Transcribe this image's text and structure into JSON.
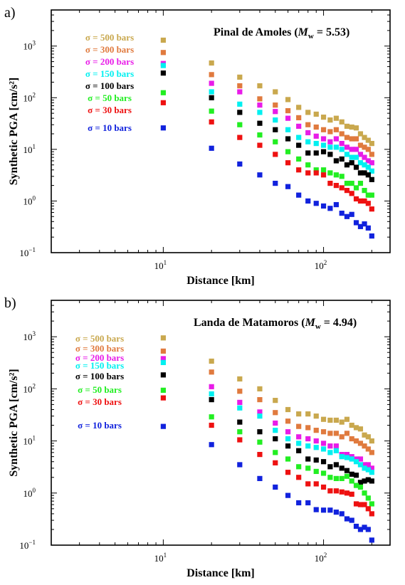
{
  "chart_data": [
    {
      "type": "scatter",
      "panel": "a)",
      "title": "Pinal de Amoles",
      "title_mw_symbol": "M",
      "title_mw_sub": "w",
      "title_mw_value": " = 5.53)",
      "xlabel": "Distance [km]",
      "ylabel": "Synthetic PGA [cm/s²]",
      "xscale": "log",
      "yscale": "log",
      "xlim": [
        2,
        260
      ],
      "ylim": [
        0.1,
        5000
      ],
      "x_tick_labels": [
        {
          "base": "10",
          "exp": "1"
        },
        {
          "base": "10",
          "exp": "2"
        }
      ],
      "y_tick_labels": [
        {
          "base": "10",
          "exp": "−1"
        },
        {
          "base": "10",
          "exp": "0"
        },
        {
          "base": "10",
          "exp": "1"
        },
        {
          "base": "10",
          "exp": "2"
        },
        {
          "base": "10",
          "exp": "3"
        }
      ],
      "legend_position": "top-left",
      "series": [
        {
          "name": "σ = 500 bars",
          "color": "#c9a84e",
          "x": [
            10,
            20,
            30,
            40,
            50,
            60,
            70,
            80,
            90,
            100,
            110,
            120,
            130,
            140,
            150,
            160,
            170,
            180,
            190,
            200
          ],
          "y": [
            1300,
            470,
            250,
            170,
            130,
            92,
            65,
            52,
            48,
            42,
            37,
            40,
            34,
            28,
            27,
            26,
            20,
            17,
            15,
            13
          ]
        },
        {
          "name": "σ = 300 bars",
          "color": "#e07a3e",
          "x": [
            10,
            20,
            30,
            40,
            50,
            60,
            70,
            80,
            90,
            100,
            110,
            120,
            130,
            140,
            150,
            160,
            170,
            180,
            190,
            200
          ],
          "y": [
            750,
            280,
            170,
            95,
            72,
            56,
            41,
            30,
            27,
            24,
            22,
            24,
            20,
            17,
            16,
            16,
            12,
            11,
            10,
            8
          ]
        },
        {
          "name": "σ = 200 bars",
          "color": "#e81ce8",
          "x": [
            10,
            20,
            30,
            40,
            50,
            60,
            70,
            80,
            90,
            100,
            110,
            120,
            130,
            140,
            150,
            160,
            170,
            180,
            190,
            200
          ],
          "y": [
            460,
            190,
            130,
            72,
            54,
            40,
            28,
            21,
            18,
            16,
            14,
            16,
            13,
            11,
            10,
            10,
            8,
            7,
            6,
            5.5
          ]
        },
        {
          "name": "σ = 150 bars",
          "color": "#00f0f0",
          "x": [
            10,
            20,
            30,
            40,
            50,
            60,
            70,
            80,
            90,
            100,
            110,
            120,
            130,
            140,
            150,
            160,
            170,
            180,
            190,
            200
          ],
          "y": [
            420,
            130,
            75,
            52,
            37,
            24,
            17,
            14,
            13,
            12,
            11,
            11,
            10,
            8,
            7,
            7,
            5.5,
            5,
            4.5,
            3.8
          ]
        },
        {
          "name": "σ = 100 bars",
          "color": "#000000",
          "x": [
            10,
            20,
            30,
            40,
            50,
            60,
            70,
            80,
            90,
            100,
            110,
            120,
            130,
            140,
            150,
            160,
            170,
            180,
            190,
            200
          ],
          "y": [
            300,
            100,
            52,
            32,
            24,
            16,
            12,
            8.5,
            8.5,
            9,
            8,
            6,
            6.5,
            5,
            5.5,
            4.5,
            3.5,
            3.5,
            3.2,
            2.6
          ]
        },
        {
          "name": "σ = 50 bars",
          "color": "#22ee22",
          "x": [
            10,
            20,
            30,
            40,
            50,
            60,
            70,
            80,
            90,
            100,
            110,
            120,
            130,
            140,
            150,
            160,
            170,
            180,
            190,
            200
          ],
          "y": [
            125,
            55,
            30,
            19,
            14,
            9,
            6.5,
            5,
            4,
            4,
            3.5,
            3.2,
            3,
            2.2,
            2.2,
            1.8,
            2.2,
            1.6,
            1.3,
            1.3
          ]
        },
        {
          "name": "σ = 30 bars",
          "color": "#ee1111",
          "x": [
            10,
            20,
            30,
            40,
            50,
            60,
            70,
            80,
            90,
            100,
            110,
            120,
            130,
            140,
            150,
            160,
            170,
            180,
            190,
            200
          ],
          "y": [
            80,
            34,
            17,
            12,
            8,
            5.5,
            4,
            3.5,
            3.5,
            3.2,
            2.2,
            2,
            1.8,
            1.6,
            1.4,
            1.1,
            1,
            1,
            0.9,
            0.7
          ]
        },
        {
          "name": "σ = 10 bars",
          "color": "#1122dd",
          "x": [
            10,
            20,
            30,
            40,
            50,
            60,
            70,
            80,
            90,
            100,
            110,
            120,
            130,
            140,
            150,
            160,
            170,
            180,
            190,
            200
          ],
          "y": [
            26,
            10.5,
            5.2,
            3.2,
            2.2,
            1.9,
            1.3,
            1,
            0.9,
            0.8,
            0.72,
            0.85,
            0.58,
            0.5,
            0.55,
            0.38,
            0.32,
            0.36,
            0.3,
            0.21
          ]
        }
      ]
    },
    {
      "type": "scatter",
      "panel": "b)",
      "title": "Landa de Matamoros",
      "title_mw_symbol": "M",
      "title_mw_sub": "w",
      "title_mw_value": " = 4.94)",
      "xlabel": "Distance [km]",
      "ylabel": "Synthetic PGA [cm/s²]",
      "xscale": "log",
      "yscale": "log",
      "xlim": [
        2,
        260
      ],
      "ylim": [
        0.1,
        5000
      ],
      "x_tick_labels": [
        {
          "base": "10",
          "exp": "1"
        },
        {
          "base": "10",
          "exp": "2"
        }
      ],
      "y_tick_labels": [
        {
          "base": "10",
          "exp": "−1"
        },
        {
          "base": "10",
          "exp": "0"
        },
        {
          "base": "10",
          "exp": "1"
        },
        {
          "base": "10",
          "exp": "2"
        },
        {
          "base": "10",
          "exp": "3"
        }
      ],
      "legend_position": "top-left",
      "series": [
        {
          "name": "σ = 500 bars",
          "color": "#c9a84e",
          "x": [
            10,
            20,
            30,
            40,
            50,
            60,
            70,
            80,
            90,
            100,
            110,
            120,
            130,
            140,
            150,
            160,
            170,
            180,
            190,
            200
          ],
          "y": [
            950,
            340,
            155,
            100,
            60,
            40,
            33,
            33,
            30,
            26,
            25,
            25,
            23,
            26,
            20,
            18,
            17,
            13,
            12,
            10
          ]
        },
        {
          "name": "σ = 300 bars",
          "color": "#e07a3e",
          "x": [
            10,
            20,
            30,
            40,
            50,
            60,
            70,
            80,
            90,
            100,
            110,
            120,
            130,
            140,
            150,
            160,
            170,
            180,
            190,
            200
          ],
          "y": [
            530,
            210,
            90,
            62,
            35,
            24,
            19,
            18,
            16,
            15,
            14,
            14,
            12,
            14,
            11,
            10,
            9,
            8,
            7,
            6
          ]
        },
        {
          "name": "σ = 200 bars",
          "color": "#e81ce8",
          "x": [
            10,
            20,
            30,
            40,
            50,
            60,
            70,
            80,
            90,
            100,
            110,
            120,
            130,
            140,
            150,
            160,
            170,
            180,
            190,
            200
          ],
          "y": [
            380,
            110,
            55,
            36,
            22,
            15,
            12,
            11,
            10,
            9,
            8,
            8,
            5.5,
            5.5,
            5,
            4.5,
            4.5,
            3.5,
            3.5,
            3
          ]
        },
        {
          "name": "σ = 150 bars",
          "color": "#00f0f0",
          "x": [
            10,
            20,
            30,
            40,
            50,
            60,
            70,
            80,
            90,
            100,
            110,
            120,
            130,
            140,
            150,
            160,
            170,
            180,
            190,
            200
          ],
          "y": [
            320,
            80,
            43,
            30,
            16,
            11,
            9,
            8,
            7.5,
            7,
            6,
            6.5,
            5,
            4.8,
            4.5,
            4,
            3.5,
            3,
            2.8,
            2.5
          ]
        },
        {
          "name": "σ = 100 bars",
          "color": "#000000",
          "x": [
            10,
            20,
            30,
            40,
            50,
            60,
            70,
            80,
            90,
            100,
            110,
            120,
            130,
            140,
            150,
            160,
            170,
            180,
            190,
            200
          ],
          "y": [
            185,
            62,
            23,
            15,
            11,
            8,
            6.5,
            4.5,
            4.3,
            4,
            3.2,
            3.5,
            3,
            2.7,
            2.3,
            2.2,
            1.6,
            1.7,
            1.8,
            1.7
          ]
        },
        {
          "name": "σ = 50 bars",
          "color": "#22ee22",
          "x": [
            10,
            20,
            30,
            40,
            50,
            60,
            70,
            80,
            90,
            100,
            110,
            120,
            130,
            140,
            150,
            160,
            170,
            180,
            190,
            200
          ],
          "y": [
            94,
            29,
            15,
            9.5,
            6,
            4.5,
            3.2,
            3,
            2.6,
            2.4,
            2,
            1.9,
            1.9,
            2.1,
            1.7,
            1.4,
            1.3,
            1,
            0.8,
            0.62
          ]
        },
        {
          "name": "σ = 30 bars",
          "color": "#ee1111",
          "x": [
            10,
            20,
            30,
            40,
            50,
            60,
            70,
            80,
            90,
            100,
            110,
            120,
            130,
            140,
            150,
            160,
            170,
            180,
            190,
            200
          ],
          "y": [
            67,
            20,
            10.5,
            5.5,
            3.8,
            2.5,
            2,
            1.5,
            1.5,
            1.3,
            1.1,
            1.1,
            1.05,
            1,
            0.95,
            0.62,
            0.6,
            0.6,
            0.5,
            0.4
          ]
        },
        {
          "name": "σ = 10 bars",
          "color": "#1122dd",
          "x": [
            10,
            20,
            30,
            40,
            50,
            60,
            70,
            80,
            90,
            100,
            110,
            120,
            130,
            140,
            150,
            160,
            170,
            180,
            190,
            200
          ],
          "y": [
            19,
            8.5,
            3.5,
            1.9,
            1.3,
            0.9,
            0.65,
            0.65,
            0.48,
            0.47,
            0.47,
            0.43,
            0.4,
            0.32,
            0.3,
            0.23,
            0.2,
            0.22,
            0.2,
            0.125
          ]
        }
      ]
    }
  ]
}
